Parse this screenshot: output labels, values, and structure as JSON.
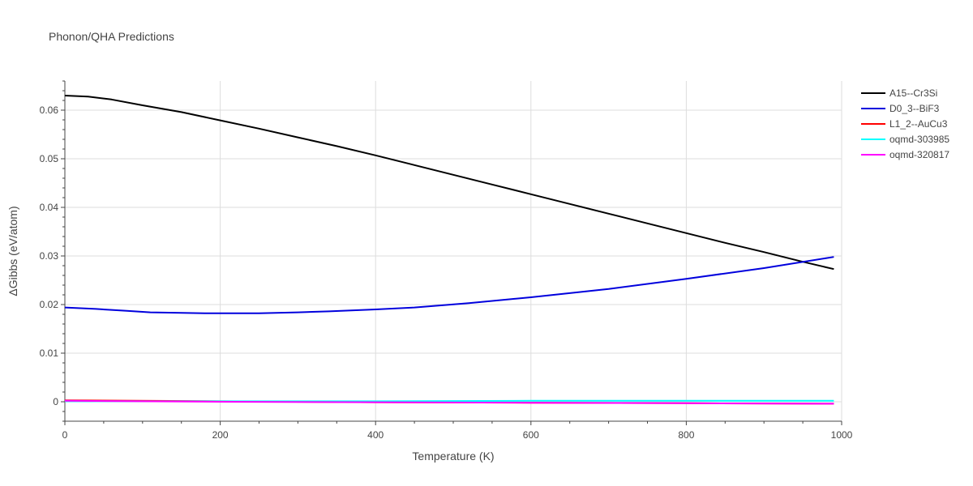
{
  "chart_data": {
    "type": "line",
    "title": "Phonon/QHA Predictions",
    "xlabel": "Temperature (K)",
    "ylabel": "ΔGibbs (eV/atom)",
    "xlim": [
      0,
      1000
    ],
    "ylim": [
      -0.004,
      0.066
    ],
    "x_ticks": [
      0,
      200,
      400,
      600,
      800,
      1000
    ],
    "x_tick_labels": [
      "0",
      "200",
      "400",
      "600",
      "800",
      "1000"
    ],
    "y_ticks": [
      0,
      0.01,
      0.02,
      0.03,
      0.04,
      0.05,
      0.06
    ],
    "y_tick_labels": [
      "0",
      "0.01",
      "0.02",
      "0.03",
      "0.04",
      "0.05",
      "0.06"
    ],
    "grid": true,
    "legend_position": "top-right",
    "series": [
      {
        "name": "A15--Cr3Si",
        "color": "#000000",
        "x": [
          0,
          30,
          60,
          100,
          150,
          200,
          250,
          300,
          350,
          400,
          450,
          500,
          550,
          600,
          650,
          700,
          750,
          800,
          850,
          900,
          950,
          990
        ],
        "y": [
          0.063,
          0.0628,
          0.0622,
          0.061,
          0.0596,
          0.0579,
          0.0562,
          0.0544,
          0.0526,
          0.0507,
          0.0487,
          0.0467,
          0.0447,
          0.0427,
          0.0407,
          0.0387,
          0.0367,
          0.0347,
          0.0327,
          0.0308,
          0.0288,
          0.0273
        ]
      },
      {
        "name": "D0_3--BiF3",
        "color": "#0000dd",
        "x": [
          0,
          40,
          80,
          110,
          150,
          180,
          210,
          250,
          300,
          340,
          400,
          450,
          520,
          600,
          700,
          800,
          900,
          990
        ],
        "y": [
          0.0194,
          0.0191,
          0.0187,
          0.0184,
          0.0183,
          0.0182,
          0.0182,
          0.0182,
          0.0184,
          0.0186,
          0.019,
          0.0194,
          0.0203,
          0.0215,
          0.0232,
          0.0253,
          0.0275,
          0.0298
        ]
      },
      {
        "name": "L1_2--AuCu3",
        "color": "#ff0000",
        "x": [
          0,
          200,
          400,
          600,
          800,
          990
        ],
        "y": [
          0.0003,
          0.0001,
          -0.0001,
          -0.0002,
          -0.0003,
          -0.0004
        ]
      },
      {
        "name": "oqmd-303985",
        "color": "#00ffff",
        "x": [
          0,
          200,
          400,
          600,
          800,
          990
        ],
        "y": [
          0.0001,
          0.0001,
          0.0001,
          0.0002,
          0.0002,
          0.0002
        ]
      },
      {
        "name": "oqmd-320817",
        "color": "#ff00ff",
        "x": [
          0,
          200,
          400,
          600,
          800,
          990
        ],
        "y": [
          0.0002,
          0.0,
          -0.0001,
          -0.0002,
          -0.0003,
          -0.0004
        ]
      }
    ]
  }
}
